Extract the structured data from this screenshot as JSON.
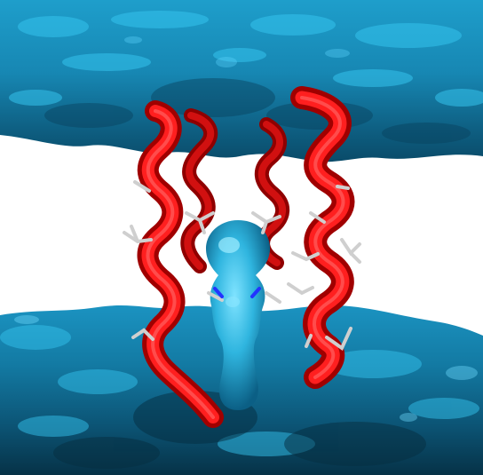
{
  "scene": {
    "subject": "molecular-rendering",
    "colors": {
      "background": "#ffffff",
      "membrane_light": "#2fb6e0",
      "membrane_mid": "#1a8db8",
      "membrane_dark": "#0d5a7c",
      "membrane_shadow": "#06384f",
      "helix_red": "#ff1a1a",
      "helix_dark": "#b00000",
      "sidechain_gray": "#c8c8c8",
      "nitrogen_blue": "#2233ff",
      "water_blob": "#3cc2ea"
    },
    "elements": [
      "top-membrane-surface",
      "bottom-membrane-surface",
      "alpha-helix-left-front",
      "alpha-helix-left-back",
      "alpha-helix-right-front",
      "alpha-helix-right-back",
      "water-channel-blob",
      "side-chain-sticks"
    ]
  }
}
